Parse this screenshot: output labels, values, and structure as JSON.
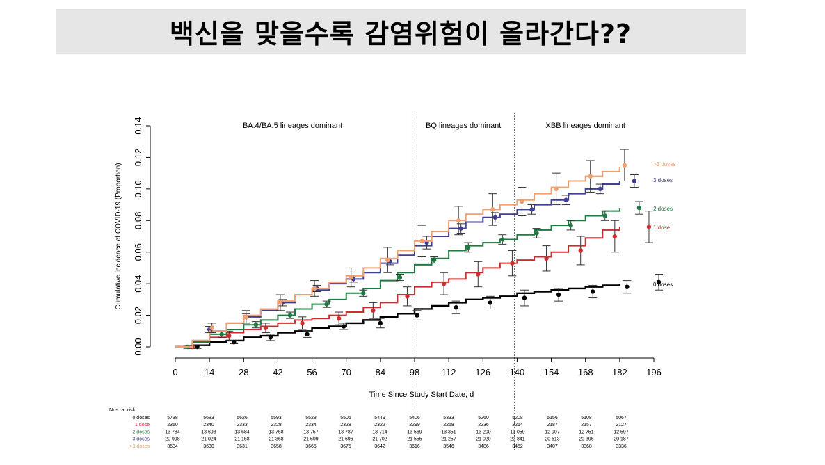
{
  "banner": {
    "title": "백신을 맞을수록 감염위험이 올라간다??"
  },
  "chart_data": {
    "type": "line",
    "xlabel": "Time Since Study Start Date, d",
    "ylabel": "Cumulative Incidence of COVID-19 (Proportion)",
    "xlim": [
      0,
      196
    ],
    "ylim": [
      0,
      0.14
    ],
    "x_ticks": [
      "0",
      "14",
      "28",
      "42",
      "56",
      "70",
      "84",
      "98",
      "112",
      "126",
      "140",
      "154",
      "168",
      "182",
      "196"
    ],
    "y_ticks": [
      "0.00",
      "0.02",
      "0.04",
      "0.06",
      "0.08",
      "0.10",
      "0.12",
      "0.14"
    ],
    "grid": false,
    "phase_dividers": [
      97,
      139
    ],
    "phase_labels": [
      {
        "text": "BA.4/BA.5 lineages dominant",
        "x": 48
      },
      {
        "text": "BQ lineages dominant",
        "x": 118
      },
      {
        "text": "XBB lineages dominant",
        "x": 168
      }
    ],
    "series": [
      {
        "name": ">3 doses",
        "color": "#f0a070",
        "x": [
          0,
          7,
          14,
          21,
          28,
          35,
          42,
          49,
          56,
          63,
          70,
          77,
          84,
          91,
          98,
          105,
          112,
          119,
          126,
          133,
          140,
          147,
          154,
          161,
          168,
          175,
          182
        ],
        "y": [
          0,
          0.004,
          0.01,
          0.015,
          0.02,
          0.024,
          0.029,
          0.033,
          0.037,
          0.041,
          0.045,
          0.05,
          0.056,
          0.061,
          0.067,
          0.073,
          0.08,
          0.084,
          0.087,
          0.09,
          0.093,
          0.097,
          0.101,
          0.105,
          0.108,
          0.111,
          0.114
        ],
        "err_x": [
          15,
          29,
          43,
          57,
          72,
          87,
          101,
          116,
          130,
          142,
          156,
          170,
          184
        ],
        "err_y": [
          0.012,
          0.019,
          0.028,
          0.037,
          0.044,
          0.055,
          0.067,
          0.08,
          0.087,
          0.092,
          0.1,
          0.108,
          0.115
        ],
        "err_h": [
          0.003,
          0.004,
          0.005,
          0.005,
          0.006,
          0.008,
          0.01,
          0.009,
          0.01,
          0.009,
          0.01,
          0.01,
          0.01
        ]
      },
      {
        "name": "3 doses",
        "color": "#3f3f96",
        "x": [
          0,
          7,
          14,
          21,
          28,
          35,
          42,
          49,
          56,
          63,
          70,
          77,
          84,
          91,
          98,
          105,
          112,
          119,
          126,
          133,
          140,
          147,
          154,
          161,
          168,
          175,
          182
        ],
        "y": [
          0,
          0.004,
          0.01,
          0.015,
          0.019,
          0.023,
          0.028,
          0.033,
          0.036,
          0.04,
          0.043,
          0.047,
          0.053,
          0.058,
          0.064,
          0.07,
          0.075,
          0.079,
          0.082,
          0.084,
          0.087,
          0.09,
          0.093,
          0.097,
          0.1,
          0.103,
          0.105
        ],
        "err_x": [
          14,
          29,
          44,
          58,
          73,
          88,
          103,
          117,
          131,
          146,
          160,
          174,
          188
        ],
        "err_y": [
          0.011,
          0.019,
          0.028,
          0.037,
          0.043,
          0.054,
          0.066,
          0.075,
          0.082,
          0.087,
          0.093,
          0.1,
          0.105
        ],
        "err_h": [
          0.002,
          0.002,
          0.002,
          0.002,
          0.002,
          0.002,
          0.004,
          0.003,
          0.003,
          0.003,
          0.003,
          0.003,
          0.004
        ]
      },
      {
        "name": "2 doses",
        "color": "#1e7a40",
        "x": [
          0,
          7,
          14,
          21,
          28,
          35,
          42,
          49,
          56,
          63,
          70,
          77,
          84,
          91,
          98,
          105,
          112,
          119,
          126,
          133,
          140,
          147,
          154,
          161,
          168,
          175,
          182
        ],
        "y": [
          0,
          0.003,
          0.008,
          0.011,
          0.014,
          0.017,
          0.02,
          0.024,
          0.027,
          0.03,
          0.034,
          0.037,
          0.042,
          0.047,
          0.052,
          0.056,
          0.061,
          0.064,
          0.066,
          0.068,
          0.071,
          0.074,
          0.077,
          0.08,
          0.083,
          0.086,
          0.088
        ],
        "err_x": [
          5,
          19,
          33,
          47,
          62,
          77,
          92,
          106,
          120,
          134,
          148,
          162,
          176,
          190
        ],
        "err_y": [
          0.0,
          0.008,
          0.014,
          0.02,
          0.027,
          0.034,
          0.044,
          0.055,
          0.063,
          0.068,
          0.072,
          0.077,
          0.083,
          0.088
        ],
        "err_h": [
          0.001,
          0.002,
          0.002,
          0.002,
          0.002,
          0.002,
          0.002,
          0.002,
          0.003,
          0.003,
          0.003,
          0.003,
          0.003,
          0.004
        ]
      },
      {
        "name": "1 dose",
        "color": "#cc2e30",
        "x": [
          0,
          7,
          14,
          21,
          28,
          35,
          42,
          49,
          56,
          63,
          70,
          77,
          84,
          91,
          98,
          105,
          112,
          119,
          126,
          133,
          140,
          147,
          154,
          161,
          168,
          175,
          182
        ],
        "y": [
          0,
          0.003,
          0.006,
          0.009,
          0.011,
          0.013,
          0.015,
          0.017,
          0.018,
          0.02,
          0.022,
          0.025,
          0.028,
          0.033,
          0.038,
          0.041,
          0.043,
          0.047,
          0.05,
          0.053,
          0.055,
          0.057,
          0.06,
          0.064,
          0.069,
          0.074,
          0.076
        ],
        "err_x": [
          7,
          22,
          37,
          52,
          67,
          81,
          95,
          110,
          124,
          138,
          152,
          166,
          180,
          194
        ],
        "err_y": [
          0.0,
          0.007,
          0.012,
          0.015,
          0.018,
          0.023,
          0.032,
          0.04,
          0.046,
          0.053,
          0.056,
          0.061,
          0.07,
          0.076
        ],
        "err_h": [
          0.001,
          0.003,
          0.003,
          0.004,
          0.004,
          0.005,
          0.006,
          0.007,
          0.008,
          0.008,
          0.008,
          0.009,
          0.01,
          0.01
        ]
      },
      {
        "name": "0 doses",
        "color": "#000000",
        "x": [
          0,
          7,
          14,
          21,
          28,
          35,
          42,
          49,
          56,
          63,
          70,
          77,
          84,
          91,
          98,
          105,
          112,
          119,
          126,
          133,
          140,
          147,
          154,
          161,
          168,
          175,
          182
        ],
        "y": [
          0,
          0.001,
          0.003,
          0.004,
          0.006,
          0.007,
          0.009,
          0.01,
          0.012,
          0.013,
          0.015,
          0.017,
          0.019,
          0.021,
          0.024,
          0.026,
          0.028,
          0.03,
          0.031,
          0.032,
          0.034,
          0.035,
          0.036,
          0.037,
          0.038,
          0.039,
          0.04
        ],
        "err_x": [
          9,
          24,
          39,
          54,
          69,
          84,
          99,
          115,
          129,
          143,
          157,
          171,
          185,
          198
        ],
        "err_y": [
          0.0,
          0.003,
          0.006,
          0.008,
          0.013,
          0.015,
          0.02,
          0.025,
          0.028,
          0.031,
          0.033,
          0.035,
          0.038,
          0.041
        ],
        "err_h": [
          0.001,
          0.001,
          0.002,
          0.002,
          0.002,
          0.003,
          0.003,
          0.004,
          0.004,
          0.005,
          0.004,
          0.004,
          0.004,
          0.005
        ]
      }
    ],
    "risk_table": {
      "title": "Nos. at risk:",
      "rows": [
        {
          "label": "0 doses",
          "color": "#000000",
          "values": [
            "5738",
            "5683",
            "5626",
            "5593",
            "5528",
            "5506",
            "5449",
            "5406",
            "5333",
            "5260",
            "5208",
            "5156",
            "5108",
            "5067"
          ]
        },
        {
          "label": "1 dose",
          "color": "#cc2e30",
          "values": [
            "2350",
            "2340",
            "2333",
            "2328",
            "2334",
            "2328",
            "2322",
            "2299",
            "2268",
            "2236",
            "2214",
            "2187",
            "2157",
            "2127"
          ]
        },
        {
          "label": "2 doses",
          "color": "#1e7a40",
          "values": [
            "13 784",
            "13 693",
            "13 684",
            "13 758",
            "13 757",
            "13 787",
            "13 714",
            "13 569",
            "13 351",
            "13 200",
            "13 059",
            "12 907",
            "12 751",
            "12 597"
          ]
        },
        {
          "label": "3 doses",
          "color": "#3f3f96",
          "values": [
            "20 998",
            "21 024",
            "21 158",
            "21 368",
            "21 509",
            "21 696",
            "21 702",
            "21 555",
            "21 257",
            "21 020",
            "20 841",
            "20 613",
            "20 396",
            "20 187"
          ]
        },
        {
          "label": ">3 doses",
          "color": "#f0a070",
          "values": [
            "3634",
            "3630",
            "3631",
            "3658",
            "3665",
            "3675",
            "3642",
            "3616",
            "3546",
            "3486",
            "3452",
            "3407",
            "3368",
            "3336"
          ]
        }
      ]
    }
  }
}
